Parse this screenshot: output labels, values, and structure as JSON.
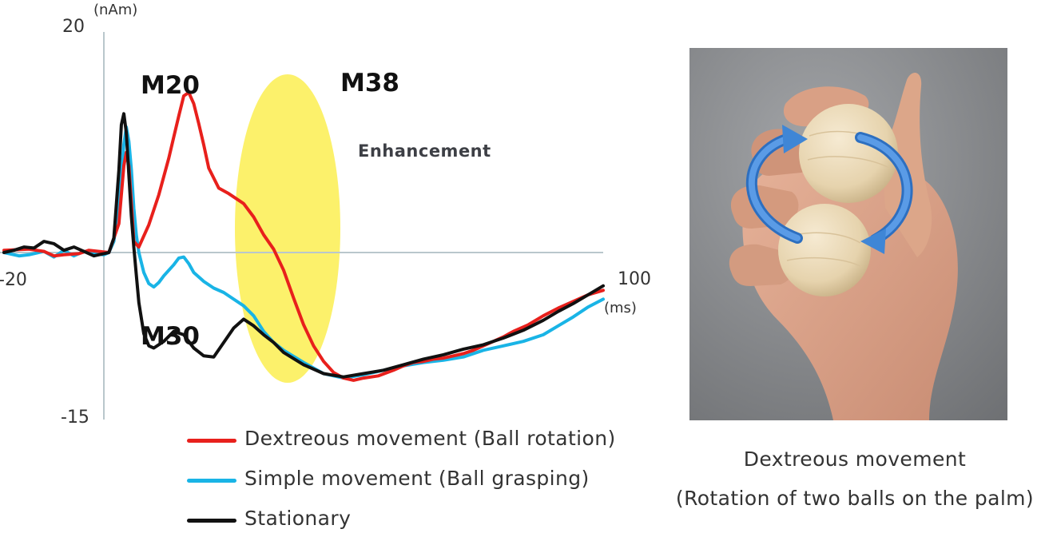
{
  "chart_data": {
    "type": "line",
    "xlabel": "(ms)",
    "ylabel": "(nAm)",
    "xlim": [
      -20,
      100
    ],
    "ylim": [
      -15,
      20
    ],
    "x_tick_labels": [
      "-20",
      "100"
    ],
    "y_tick_labels": [
      "20",
      "-15"
    ],
    "annotations": {
      "peaks": [
        "M20",
        "M30",
        "M38"
      ],
      "highlight_label": "Enhancement",
      "highlight_x_range": [
        6,
        22
      ]
    },
    "series": [
      {
        "name": "Dextreous movement (Ball rotation)",
        "color": "#e8201c",
        "x": [
          -20,
          -15,
          -12,
          -10,
          -8,
          -5,
          -3,
          -1,
          1,
          3,
          4,
          4.5,
          5,
          5.5,
          6,
          7,
          9,
          11,
          13,
          14,
          15,
          16,
          17,
          18,
          19,
          20,
          21,
          23,
          25,
          28,
          30,
          32,
          34,
          36,
          38,
          40,
          42,
          44,
          46,
          48,
          50,
          52,
          55,
          58,
          60,
          62,
          64,
          66,
          68,
          70,
          72,
          74,
          76,
          78,
          80,
          82,
          85,
          88,
          91,
          94,
          97,
          100
        ],
        "y": [
          0.2,
          0.3,
          0.1,
          -0.3,
          -0.2,
          -0.1,
          0.2,
          0.1,
          0,
          2.6,
          7.8,
          9.0,
          7.8,
          4.5,
          1.0,
          0.5,
          2.5,
          5.2,
          8.5,
          10.4,
          12.3,
          14.1,
          14.4,
          13.4,
          11.6,
          9.7,
          7.6,
          5.8,
          5.3,
          4.4,
          3.2,
          1.6,
          0.3,
          -1.6,
          -4.1,
          -6.5,
          -8.4,
          -9.8,
          -10.8,
          -11.3,
          -11.5,
          -11.3,
          -11.1,
          -10.6,
          -10.2,
          -9.9,
          -9.8,
          -9.6,
          -9.5,
          -9.3,
          -9.1,
          -8.8,
          -8.4,
          -8.0,
          -7.6,
          -7.1,
          -6.5,
          -5.7,
          -5.0,
          -4.4,
          -3.8,
          -3.4
        ]
      },
      {
        "name": "Simple movement (Ball grasping)",
        "color": "#19b4e6",
        "x": [
          -20,
          -17,
          -15,
          -12,
          -10,
          -8,
          -6,
          -4,
          -2,
          0,
          1,
          2,
          3,
          4,
          4.5,
          5,
          5.5,
          6,
          6.5,
          7,
          8,
          9,
          10,
          11,
          12,
          13,
          14,
          15,
          16,
          17,
          18,
          20,
          22,
          24,
          26,
          28,
          30,
          32,
          34,
          36,
          40,
          44,
          48,
          52,
          56,
          60,
          64,
          68,
          72,
          76,
          80,
          84,
          88,
          91,
          94,
          97,
          100
        ],
        "y": [
          0,
          -0.3,
          -0.2,
          0.1,
          -0.4,
          0.2,
          -0.3,
          0.1,
          -0.1,
          -0.2,
          0,
          1.0,
          4.5,
          9.7,
          11.3,
          10.0,
          7.5,
          4.0,
          1.6,
          0,
          -1.8,
          -2.8,
          -3.1,
          -2.7,
          -2.1,
          -1.6,
          -1.1,
          -0.5,
          -0.4,
          -1.0,
          -1.8,
          -2.6,
          -3.2,
          -3.6,
          -4.2,
          -4.8,
          -5.7,
          -7.1,
          -8.1,
          -8.8,
          -9.9,
          -10.9,
          -11.3,
          -11.0,
          -10.6,
          -10.2,
          -9.9,
          -9.7,
          -9.4,
          -8.8,
          -8.4,
          -8.0,
          -7.4,
          -6.6,
          -5.8,
          -4.9,
          -4.2
        ]
      },
      {
        "name": "Stationary",
        "color": "#111111",
        "x": [
          -20,
          -18,
          -16,
          -14,
          -12,
          -10,
          -8,
          -6,
          -4,
          -2,
          0,
          1,
          2,
          3,
          3.5,
          4,
          4.5,
          5,
          5.5,
          6,
          6.5,
          7,
          8,
          9,
          10,
          12,
          14,
          16,
          18,
          20,
          22,
          24,
          26,
          28,
          30,
          32,
          34,
          36,
          40,
          44,
          48,
          52,
          56,
          60,
          64,
          68,
          72,
          76,
          80,
          84,
          88,
          91,
          94,
          97,
          100
        ],
        "y": [
          0,
          0.2,
          0.5,
          0.4,
          1.0,
          0.8,
          0.2,
          0.5,
          0.1,
          -0.3,
          -0.1,
          0,
          1.3,
          7.4,
          11.5,
          12.5,
          10.8,
          7.0,
          3.3,
          0.5,
          -2.0,
          -4.5,
          -7.3,
          -8.4,
          -8.6,
          -8.0,
          -7.1,
          -7.4,
          -8.6,
          -9.3,
          -9.4,
          -8.1,
          -6.8,
          -6.0,
          -6.6,
          -7.4,
          -8.1,
          -9.0,
          -10.1,
          -10.9,
          -11.2,
          -10.9,
          -10.6,
          -10.1,
          -9.6,
          -9.2,
          -8.7,
          -8.3,
          -7.7,
          -7.0,
          -6.1,
          -5.3,
          -4.6,
          -3.8,
          -3.0
        ]
      }
    ]
  },
  "legend": [
    {
      "label": "Dextreous movement (Ball rotation)",
      "color": "#e8201c"
    },
    {
      "label": "Simple movement (Ball grasping)",
      "color": "#19b4e6"
    },
    {
      "label": "Stationary",
      "color": "#111111"
    }
  ],
  "photo": {
    "caption_line1": "Dextreous movement",
    "caption_line2": "(Rotation of two balls on the palm)",
    "colors": {
      "background": "#8d8f92",
      "skin": "#dba48a",
      "skin_shadow": "#b97c66",
      "ball": "#ecdcbd",
      "ball_shadow": "#cdb891",
      "arrow": "#3f86d6"
    },
    "icon": "hand-rotating-two-balls"
  }
}
